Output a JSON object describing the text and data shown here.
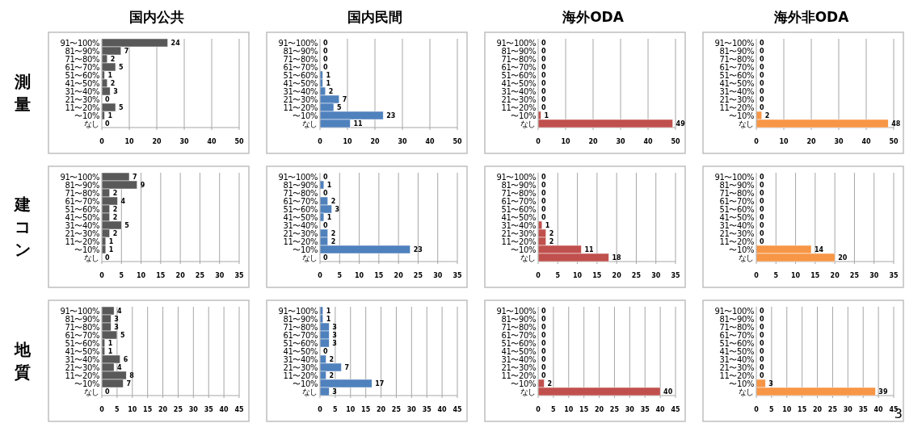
{
  "chart_data": [
    {
      "type": "bar",
      "orientation": "horizontal",
      "title": "国内公共",
      "ylabel": "測量",
      "categories": [
        "91〜100%",
        "81〜90%",
        "71〜80%",
        "61〜70%",
        "51〜60%",
        "41〜50%",
        "31〜40%",
        "21〜30%",
        "11〜20%",
        "〜10%",
        "なし"
      ],
      "values": [
        24,
        7,
        2,
        5,
        1,
        2,
        3,
        0,
        5,
        1,
        0
      ],
      "color": "#595959",
      "xlim": [
        0,
        50
      ],
      "xticks": [
        0,
        10,
        20,
        30,
        40,
        50
      ],
      "grid": "x",
      "data_labels": true
    },
    {
      "type": "bar",
      "orientation": "horizontal",
      "title": "国内民間",
      "categories": [
        "91〜100%",
        "81〜90%",
        "71〜80%",
        "61〜70%",
        "51〜60%",
        "41〜50%",
        "31〜40%",
        "21〜30%",
        "11〜20%",
        "〜10%",
        "なし"
      ],
      "values": [
        0,
        0,
        0,
        0,
        1,
        1,
        2,
        7,
        5,
        23,
        11
      ],
      "color": "#4f81bd",
      "xlim": [
        0,
        50
      ],
      "xticks": [
        0,
        10,
        20,
        30,
        40,
        50
      ],
      "grid": "x",
      "data_labels": true
    },
    {
      "type": "bar",
      "orientation": "horizontal",
      "title": "海外ODA",
      "categories": [
        "91〜100%",
        "81〜90%",
        "71〜80%",
        "61〜70%",
        "51〜60%",
        "41〜50%",
        "31〜40%",
        "21〜30%",
        "11〜20%",
        "〜10%",
        "なし"
      ],
      "values": [
        0,
        0,
        0,
        0,
        0,
        0,
        0,
        0,
        0,
        1,
        49
      ],
      "color": "#c0504d",
      "xlim": [
        0,
        50
      ],
      "xticks": [
        0,
        10,
        20,
        30,
        40,
        50
      ],
      "grid": "x",
      "data_labels": true
    },
    {
      "type": "bar",
      "orientation": "horizontal",
      "title": "海外非ODA",
      "categories": [
        "91〜100%",
        "81〜90%",
        "71〜80%",
        "61〜70%",
        "51〜60%",
        "41〜50%",
        "31〜40%",
        "21〜30%",
        "11〜20%",
        "〜10%",
        "なし"
      ],
      "values": [
        0,
        0,
        0,
        0,
        0,
        0,
        0,
        0,
        0,
        2,
        48
      ],
      "color": "#f79646",
      "xlim": [
        0,
        50
      ],
      "xticks": [
        0,
        10,
        20,
        30,
        40,
        50
      ],
      "grid": "x",
      "data_labels": true
    },
    {
      "type": "bar",
      "orientation": "horizontal",
      "ylabel": "建コン",
      "categories": [
        "91〜100%",
        "81〜90%",
        "71〜80%",
        "61〜70%",
        "51〜60%",
        "41〜50%",
        "31〜40%",
        "21〜30%",
        "11〜20%",
        "〜10%",
        "なし"
      ],
      "values": [
        7,
        9,
        2,
        4,
        2,
        2,
        5,
        2,
        1,
        1,
        0
      ],
      "color": "#595959",
      "xlim": [
        0,
        35
      ],
      "xticks": [
        0,
        5,
        10,
        15,
        20,
        25,
        30,
        35
      ],
      "grid": "x",
      "data_labels": true
    },
    {
      "type": "bar",
      "orientation": "horizontal",
      "categories": [
        "91〜100%",
        "81〜90%",
        "71〜80%",
        "61〜70%",
        "51〜60%",
        "41〜50%",
        "31〜40%",
        "21〜30%",
        "11〜20%",
        "〜10%",
        "なし"
      ],
      "values": [
        0,
        1,
        0,
        2,
        3,
        1,
        0,
        2,
        2,
        23,
        0
      ],
      "color": "#4f81bd",
      "xlim": [
        0,
        35
      ],
      "xticks": [
        0,
        5,
        10,
        15,
        20,
        25,
        30,
        35
      ],
      "grid": "x",
      "data_labels": true
    },
    {
      "type": "bar",
      "orientation": "horizontal",
      "categories": [
        "91〜100%",
        "81〜90%",
        "71〜80%",
        "61〜70%",
        "51〜60%",
        "41〜50%",
        "31〜40%",
        "21〜30%",
        "11〜20%",
        "〜10%",
        "なし"
      ],
      "values": [
        0,
        0,
        0,
        0,
        0,
        0,
        1,
        2,
        2,
        11,
        18
      ],
      "color": "#c0504d",
      "xlim": [
        0,
        35
      ],
      "xticks": [
        0,
        5,
        10,
        15,
        20,
        25,
        30,
        35
      ],
      "grid": "x",
      "data_labels": true
    },
    {
      "type": "bar",
      "orientation": "horizontal",
      "categories": [
        "91〜100%",
        "81〜90%",
        "71〜80%",
        "61〜70%",
        "51〜60%",
        "41〜50%",
        "31〜40%",
        "21〜30%",
        "11〜20%",
        "〜10%",
        "なし"
      ],
      "values": [
        0,
        0,
        0,
        0,
        0,
        0,
        0,
        0,
        0,
        14,
        20
      ],
      "color": "#f79646",
      "xlim": [
        0,
        35
      ],
      "xticks": [
        0,
        5,
        10,
        15,
        20,
        25,
        30,
        35
      ],
      "grid": "x",
      "data_labels": true
    },
    {
      "type": "bar",
      "orientation": "horizontal",
      "ylabel": "地質",
      "categories": [
        "91〜100%",
        "81〜90%",
        "71〜80%",
        "61〜70%",
        "51〜60%",
        "41〜50%",
        "31〜40%",
        "21〜30%",
        "11〜20%",
        "〜10%",
        "なし"
      ],
      "values": [
        4,
        3,
        3,
        5,
        1,
        1,
        6,
        4,
        8,
        7,
        0
      ],
      "color": "#595959",
      "xlim": [
        0,
        45
      ],
      "xticks": [
        0,
        5,
        10,
        15,
        20,
        25,
        30,
        35,
        40,
        45
      ],
      "grid": "x",
      "data_labels": true
    },
    {
      "type": "bar",
      "orientation": "horizontal",
      "categories": [
        "91〜100%",
        "81〜90%",
        "71〜80%",
        "61〜70%",
        "51〜60%",
        "41〜50%",
        "31〜40%",
        "21〜30%",
        "11〜20%",
        "〜10%",
        "なし"
      ],
      "values": [
        1,
        1,
        3,
        3,
        3,
        0,
        2,
        7,
        2,
        17,
        3
      ],
      "color": "#4f81bd",
      "xlim": [
        0,
        45
      ],
      "xticks": [
        0,
        5,
        10,
        15,
        20,
        25,
        30,
        35,
        40,
        45
      ],
      "grid": "x",
      "data_labels": true
    },
    {
      "type": "bar",
      "orientation": "horizontal",
      "categories": [
        "91〜100%",
        "81〜90%",
        "71〜80%",
        "61〜70%",
        "51〜60%",
        "41〜50%",
        "31〜40%",
        "21〜30%",
        "11〜20%",
        "〜10%",
        "なし"
      ],
      "values": [
        0,
        0,
        0,
        0,
        0,
        0,
        0,
        0,
        0,
        2,
        40
      ],
      "color": "#c0504d",
      "xlim": [
        0,
        45
      ],
      "xticks": [
        0,
        5,
        10,
        15,
        20,
        25,
        30,
        35,
        40,
        45
      ],
      "grid": "x",
      "data_labels": true
    },
    {
      "type": "bar",
      "orientation": "horizontal",
      "categories": [
        "91〜100%",
        "81〜90%",
        "71〜80%",
        "61〜70%",
        "51〜60%",
        "41〜50%",
        "31〜40%",
        "21〜30%",
        "11〜20%",
        "〜10%",
        "なし"
      ],
      "values": [
        0,
        0,
        0,
        0,
        0,
        0,
        0,
        0,
        0,
        3,
        39
      ],
      "color": "#f79646",
      "xlim": [
        0,
        45
      ],
      "xticks": [
        0,
        5,
        10,
        15,
        20,
        25,
        30,
        35,
        40,
        45
      ],
      "grid": "x",
      "data_labels": true,
      "annotations": [
        "3"
      ]
    }
  ]
}
